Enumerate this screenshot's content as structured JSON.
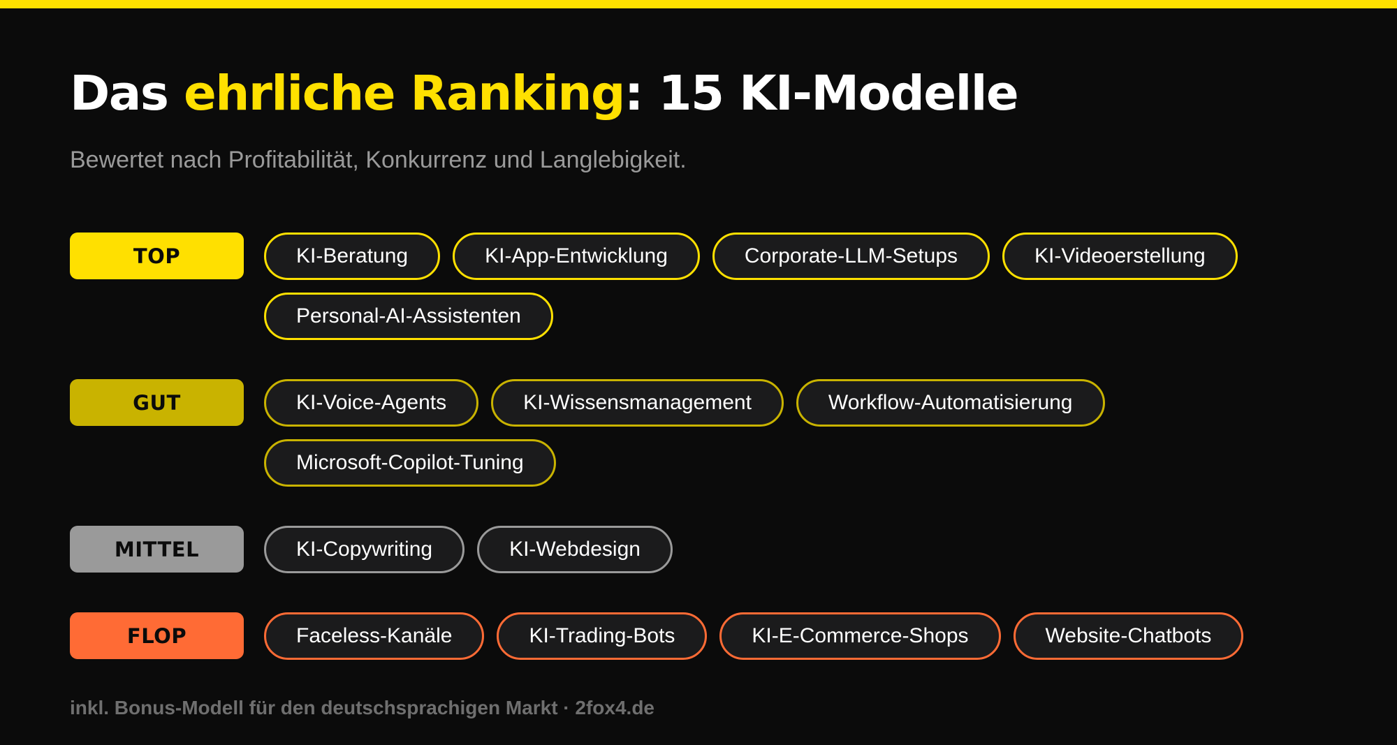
{
  "header": {
    "title_part1": "Das ",
    "title_highlight": "ehrliche Ranking",
    "title_part2": ": 15 KI-Modelle",
    "subtitle": "Bewertet nach Profitabilität, Konkurrenz und Langlebigkeit."
  },
  "colors": {
    "accent": "#ffe000",
    "background": "#0b0b0b",
    "chip_background": "#1b1b1c"
  },
  "tiers": [
    {
      "label": "TOP",
      "color": "#ffe000",
      "items": [
        "KI-Beratung",
        "KI-App-Entwicklung",
        "Corporate-LLM-Setups",
        "KI-Videoerstellung",
        "Personal-AI-Assistenten"
      ]
    },
    {
      "label": "GUT",
      "color": "#c9b300",
      "items": [
        "KI-Voice-Agents",
        "KI-Wissensmanagement",
        "Workflow-Automatisierung",
        "Microsoft-Copilot-Tuning"
      ]
    },
    {
      "label": "MITTEL",
      "color": "#9a9a9a",
      "items": [
        "KI-Copywriting",
        "KI-Webdesign"
      ]
    },
    {
      "label": "FLOP",
      "color": "#ff6b35",
      "items": [
        "Faceless-Kanäle",
        "KI-Trading-Bots",
        "KI-E-Commerce-Shops",
        "Website-Chatbots"
      ]
    }
  ],
  "footer": {
    "text": "inkl. Bonus-Modell für den deutschsprachigen Markt · 2fox4.de"
  }
}
